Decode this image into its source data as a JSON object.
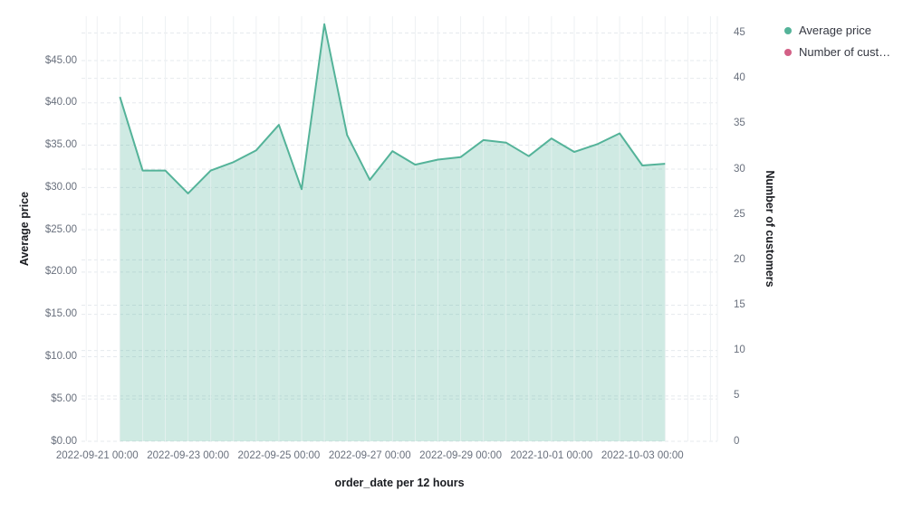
{
  "legend": {
    "items": [
      {
        "label": "Average price",
        "color": "#54b399"
      },
      {
        "label": "Number of cust…",
        "color": "#d36086"
      }
    ]
  },
  "axes": {
    "left": {
      "title": "Average price",
      "tick_labels": [
        "$0.00",
        "$5.00",
        "$10.00",
        "$15.00",
        "$20.00",
        "$25.00",
        "$30.00",
        "$35.00",
        "$40.00",
        "$45.00"
      ]
    },
    "right": {
      "title": "Number of customers",
      "tick_labels": [
        "0",
        "5",
        "10",
        "15",
        "20",
        "25",
        "30",
        "35",
        "40",
        "45"
      ]
    },
    "x": {
      "title": "order_date per 12 hours",
      "tick_labels": [
        "2022-09-21 00:00",
        "2022-09-23 00:00",
        "2022-09-25 00:00",
        "2022-09-27 00:00",
        "2022-09-29 00:00",
        "2022-10-01 00:00",
        "2022-10-03 00:00"
      ]
    }
  },
  "chart_data": {
    "type": "area",
    "title": "",
    "xlabel": "order_date per 12 hours",
    "x_interval": "12 hours",
    "grid": true,
    "legend_position": "top-right",
    "x": [
      "2022-09-21 12:00",
      "2022-09-22 00:00",
      "2022-09-22 12:00",
      "2022-09-23 00:00",
      "2022-09-23 12:00",
      "2022-09-24 00:00",
      "2022-09-24 12:00",
      "2022-09-25 00:00",
      "2022-09-25 12:00",
      "2022-09-26 00:00",
      "2022-09-26 12:00",
      "2022-09-27 00:00",
      "2022-09-27 12:00",
      "2022-09-28 00:00",
      "2022-09-28 12:00",
      "2022-09-29 00:00",
      "2022-09-29 12:00",
      "2022-09-30 00:00",
      "2022-09-30 12:00",
      "2022-10-01 00:00",
      "2022-10-01 12:00",
      "2022-10-02 00:00",
      "2022-10-02 12:00",
      "2022-10-03 00:00",
      "2022-10-03 12:00"
    ],
    "series": [
      {
        "name": "Average price",
        "axis": "left",
        "color": "#54b399",
        "fill_opacity": 0.28,
        "values": [
          40.7,
          32.0,
          32.0,
          29.3,
          32.0,
          33.0,
          34.4,
          37.4,
          29.8,
          49.3,
          36.2,
          30.9,
          34.3,
          32.7,
          33.3,
          33.6,
          35.6,
          35.3,
          33.7,
          35.8,
          34.2,
          35.1,
          36.4,
          32.6,
          32.8
        ]
      },
      {
        "name": "Number of customers",
        "axis": "right",
        "color": "#d36086",
        "values": []
      }
    ],
    "y_left": {
      "label": "Average price",
      "ticks": [
        0,
        5,
        10,
        15,
        20,
        25,
        30,
        35,
        40,
        45
      ],
      "range": [
        0,
        50.3
      ],
      "format": "currency_usd"
    },
    "y_right": {
      "label": "Number of customers",
      "ticks": [
        0,
        5,
        10,
        15,
        20,
        25,
        30,
        35,
        40,
        45
      ],
      "range": [
        0,
        46.9
      ]
    }
  }
}
